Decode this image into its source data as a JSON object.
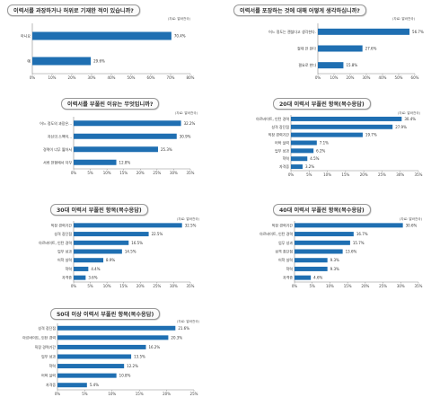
{
  "chart_data": [
    {
      "type": "bar",
      "title": "이력서를 과장하거나 허위로 기재한 적이 있습니까?",
      "source": "(자료: 알바천국)",
      "categories": [
        "아니요",
        "예"
      ],
      "values": [
        70.4,
        29.6
      ],
      "value_labels": [
        "70.4%",
        "29.6%"
      ],
      "ticks": [
        "0%",
        "10%",
        "20%",
        "30%",
        "40%",
        "50%",
        "60%",
        "70%",
        "80%"
      ],
      "xlim": [
        0,
        80
      ],
      "bar_color": "#1f6fb2"
    },
    {
      "type": "bar",
      "title": "이력서를 포장하는 것에 대해 어떻게 생각하십니까?",
      "source": "(자료: 알바천국)",
      "categories": [
        "어느 정도는 괜찮다고 생각한다.",
        "절대 안 된다",
        "필요로 한다"
      ],
      "values": [
        56.7,
        27.6,
        15.8
      ],
      "value_labels": [
        "56.7%",
        "27.6%",
        "15.8%"
      ],
      "ticks": [
        "0%",
        "10%",
        "20%",
        "30%",
        "40%",
        "50%",
        "60%"
      ],
      "xlim": [
        0,
        60
      ],
      "bar_color": "#1f6fb2"
    },
    {
      "type": "bar",
      "title": "이력서를 부풀린 이유는 무엇입니까?",
      "source": "(자료: 알바천국)",
      "categories": [
        "어느 정도의 과장은...",
        "자신의 스펙이...",
        "경력이 너무 짧아서",
        "서류 전형에서 자꾸"
      ],
      "values": [
        32.2,
        30.9,
        25.3,
        12.8
      ],
      "value_labels": [
        "32.2%",
        "30.9%",
        "25.3%",
        "12.8%"
      ],
      "ticks": [
        "0%",
        "5%",
        "10%",
        "15%",
        "20%",
        "25%",
        "30%",
        "35%"
      ],
      "xlim": [
        0,
        35
      ],
      "bar_color": "#1f6fb2"
    },
    {
      "type": "bar",
      "title": "20대 이력서 부풀린 항목(복수응답)",
      "source": "(자료: 알바천국)",
      "categories": [
        "아르바이트, 인턴 경력",
        "성격 장단점",
        "직장 경력기간",
        "어학 실력",
        "업무 성과",
        "학력",
        "자격증"
      ],
      "values": [
        30.4,
        27.9,
        19.7,
        7.1,
        6.2,
        4.5,
        3.2
      ],
      "value_labels": [
        "30.4%",
        "27.9%",
        "19.7%",
        "7.1%",
        "6.2%",
        "4.5%",
        "3.2%"
      ],
      "ticks": [
        "0%",
        "5%",
        "10%",
        "15%",
        "20%",
        "25%",
        "30%",
        "35%"
      ],
      "xlim": [
        0,
        35
      ],
      "bar_color": "#1f6fb2"
    },
    {
      "type": "bar",
      "title": "30대 이력서 부풀린 항목(복수응답)",
      "source": "(자료: 알바천국)",
      "categories": [
        "직장 경력기간",
        "성격 장단점",
        "아르바이트, 인턴 경력",
        "업무 성과",
        "어학 실력",
        "학력",
        "자격증"
      ],
      "values": [
        32.5,
        22.5,
        16.5,
        14.5,
        8.9,
        4.4,
        3.6
      ],
      "value_labels": [
        "32.5%",
        "22.5%",
        "16.5%",
        "14.5%",
        "8.9%",
        "4.4%",
        "3.6%"
      ],
      "ticks": [
        "0%",
        "5%",
        "10%",
        "15%",
        "20%",
        "25%",
        "30%",
        "35%"
      ],
      "xlim": [
        0,
        35
      ],
      "bar_color": "#1f6fb2"
    },
    {
      "type": "bar",
      "title": "40대 이력서 부풀린 항목(복수응답)",
      "source": "(자료: 알바천국)",
      "categories": [
        "직장 경력기간",
        "아르바이트, 인턴 경력",
        "업무 성과",
        "성격 장단점",
        "어학 실력",
        "학력",
        "자격증"
      ],
      "values": [
        30.6,
        16.7,
        15.7,
        13.6,
        9.3,
        9.3,
        4.6
      ],
      "value_labels": [
        "30.6%",
        "16.7%",
        "15.7%",
        "13.6%",
        "9.3%",
        "9.3%",
        "4.6%"
      ],
      "ticks": [
        "0%",
        "5%",
        "10%",
        "15%",
        "20%",
        "25%",
        "30%",
        "35%"
      ],
      "xlim": [
        0,
        35
      ],
      "bar_color": "#1f6fb2"
    },
    {
      "type": "bar",
      "title": "50대 이상 이력서 부풀린 항목(복수응답)",
      "source": "(자료: 알바천국)",
      "categories": [
        "성격 장단점",
        "아르바이트, 인턴 경력",
        "직장 경력기간",
        "업무 성과",
        "학력",
        "어학 실력",
        "자격증"
      ],
      "values": [
        21.6,
        20.3,
        16.2,
        13.5,
        12.2,
        10.8,
        5.4
      ],
      "value_labels": [
        "21.6%",
        "20.3%",
        "16.2%",
        "13.5%",
        "12.2%",
        "10.8%",
        "5.4%"
      ],
      "ticks": [
        "0%",
        "5%",
        "10%",
        "15%",
        "20%",
        "25%"
      ],
      "xlim": [
        0,
        25
      ],
      "bar_color": "#1f6fb2"
    }
  ]
}
